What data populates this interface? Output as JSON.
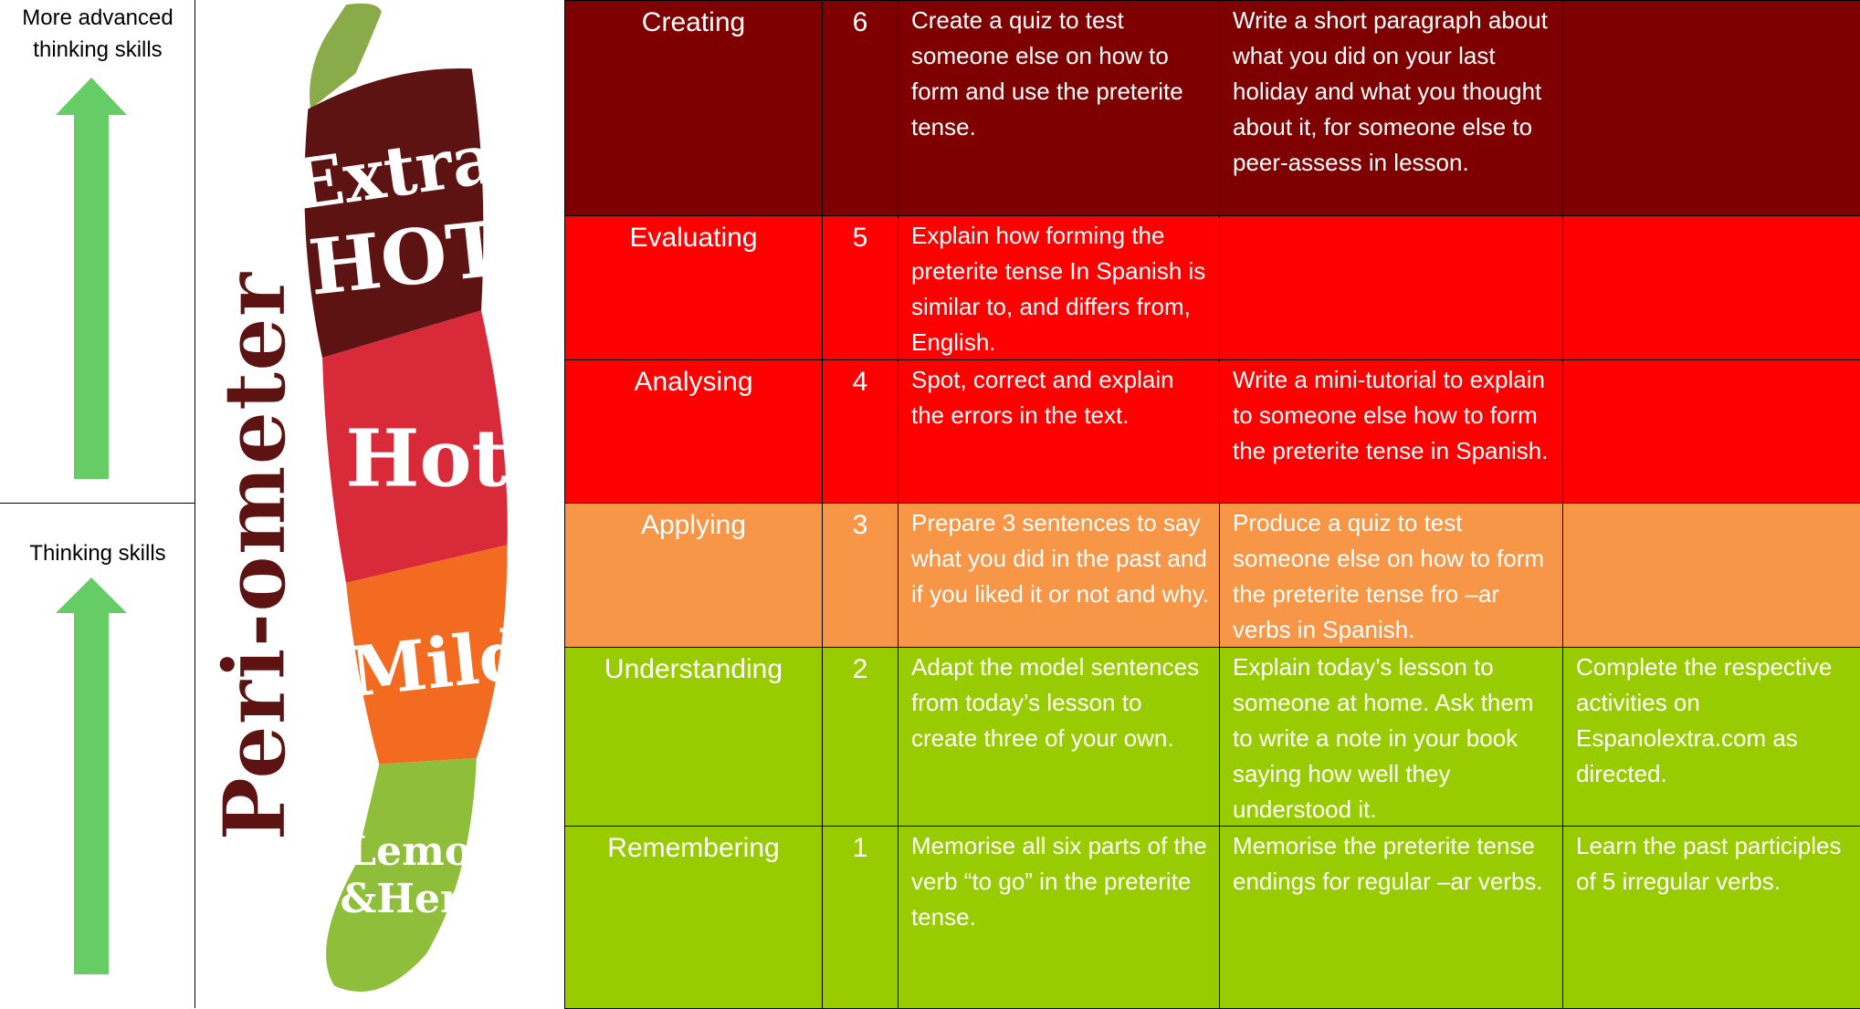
{
  "sidebar": {
    "labels": [
      "More advanced thinking skills",
      "Thinking skills"
    ],
    "arrow_color": "#66cc66"
  },
  "logo": {
    "brand": "Peri-ometer",
    "levels": [
      "Extra",
      "HOT",
      "Hot",
      "Mild",
      "Lemon",
      "&Herb"
    ]
  },
  "table": {
    "rows": [
      {
        "level": "Creating",
        "score": 6,
        "color": "#7f0000",
        "tasks": [
          "Create a quiz to test someone else on how to form and use the preterite tense.",
          "Write a short paragraph about what you did on your last holiday and what you thought about it, for someone else to peer-assess in lesson."
        ]
      },
      {
        "level": "Evaluating",
        "score": 5,
        "color": "#ff0000",
        "tasks": [
          "Explain how forming the preterite tense In Spanish is similar to, and differs from, English."
        ]
      },
      {
        "level": "Analysing",
        "score": 4,
        "color": "#ff0000",
        "tasks": [
          "Spot, correct and explain the errors in the text.",
          "Write a mini-tutorial to explain to someone else how to form the preterite tense in Spanish."
        ]
      },
      {
        "level": "Applying",
        "score": 3,
        "color": "#f79646",
        "tasks": [
          "Prepare 3 sentences to say what you did in the past and if you liked it or not and why.",
          "Produce a quiz to test someone else on how to form the preterite tense fro –ar verbs in Spanish."
        ]
      },
      {
        "level": "Understanding",
        "score": 2,
        "color": "#99cc00",
        "tasks": [
          "Adapt the model sentences from today’s lesson to create three of your own.",
          "Explain today’s lesson to someone at home.  Ask them to write a note in your book saying how well they understood it.",
          "Complete the respective activities on Espanolextra.com as directed."
        ]
      },
      {
        "level": "Remembering",
        "score": 1,
        "color": "#99cc00",
        "tasks": [
          "Memorise all six parts of the verb “to go” in the preterite tense.",
          "Memorise the preterite tense endings for regular –ar verbs.",
          "Learn the past participles of 5 irregular verbs."
        ]
      }
    ]
  }
}
